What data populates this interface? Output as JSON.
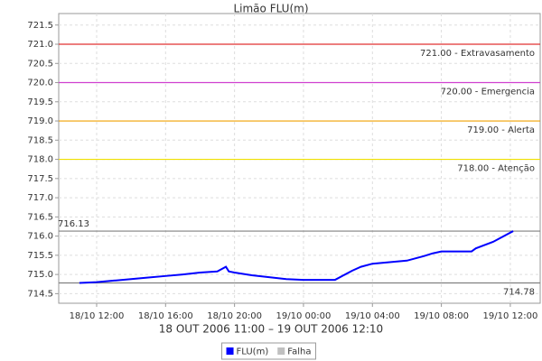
{
  "chart_data": {
    "type": "line",
    "title": "Limão FLU(m)",
    "x_label": "18 OUT 2006 11:00 – 19 OUT 2006 12:10",
    "x": [
      "18/10 11:00",
      "18/10 12:00",
      "18/10 13:00",
      "18/10 14:00",
      "18/10 15:00",
      "18/10 16:00",
      "18/10 17:00",
      "18/10 18:00",
      "18/10 19:00",
      "18/10 19:30",
      "18/10 19:40",
      "18/10 20:00",
      "18/10 21:00",
      "18/10 22:00",
      "18/10 23:00",
      "19/10 00:00",
      "19/10 01:00",
      "19/10 01:50",
      "19/10 02:50",
      "19/10 03:20",
      "19/10 04:00",
      "19/10 05:00",
      "19/10 06:00",
      "19/10 07:00",
      "19/10 07:30",
      "19/10 08:00",
      "19/10 09:00",
      "19/10 09:45",
      "19/10 10:00",
      "19/10 11:00",
      "19/10 12:10"
    ],
    "series": [
      {
        "name": "FLU(m)",
        "color": "#0000ff",
        "values": [
          714.78,
          714.8,
          714.84,
          714.88,
          714.92,
          714.96,
          715.0,
          715.05,
          715.08,
          715.2,
          715.08,
          715.05,
          714.98,
          714.93,
          714.88,
          714.86,
          714.86,
          714.86,
          715.1,
          715.2,
          715.28,
          715.32,
          715.36,
          715.48,
          715.55,
          715.6,
          715.6,
          715.6,
          715.68,
          715.85,
          716.13
        ]
      },
      {
        "name": "Falha",
        "color": "#c0c0c0"
      }
    ],
    "xlim": [
      "18/10 09:48",
      "19/10 13:44"
    ],
    "xticks": [
      "18/10 12:00",
      "18/10 16:00",
      "18/10 20:00",
      "19/10 00:00",
      "19/10 04:00",
      "19/10 08:00",
      "19/10 12:00"
    ],
    "ylim": [
      714.25,
      721.8
    ],
    "yticks": [
      714.5,
      {
        "value": 715,
        "label": "715.0"
      },
      715.5,
      {
        "value": 716,
        "label": "716.0"
      },
      716.5,
      {
        "value": 717,
        "label": "717.0"
      },
      717.5,
      {
        "value": 718,
        "label": "718.0"
      },
      718.5,
      {
        "value": 719,
        "label": "719.0"
      },
      719.5,
      {
        "value": 720,
        "label": "720.0"
      },
      720.5,
      {
        "value": 721,
        "label": "721.0"
      },
      721.5
    ],
    "grid": true,
    "annotations": [
      {
        "value": 721,
        "label": "721.00 - Extravasamento",
        "color": "#e03030",
        "label_corner": "bottom-right"
      },
      {
        "value": 720,
        "label": "720.00 - Emergencia",
        "color": "#d040d0",
        "label_corner": "bottom-right"
      },
      {
        "value": 719,
        "label": "719.00 - Alerta",
        "color": "#f0a000",
        "label_corner": "bottom-right"
      },
      {
        "value": 718,
        "label": "718.00 - Atenção",
        "color": "#f0e000",
        "label_corner": "bottom-right"
      },
      {
        "value": 716.13,
        "label": "716.13",
        "color": "#808080",
        "label_corner": "top-left"
      },
      {
        "value": 714.78,
        "label": "714.78",
        "color": "#808080",
        "label_corner": "bottom-right"
      }
    ]
  }
}
